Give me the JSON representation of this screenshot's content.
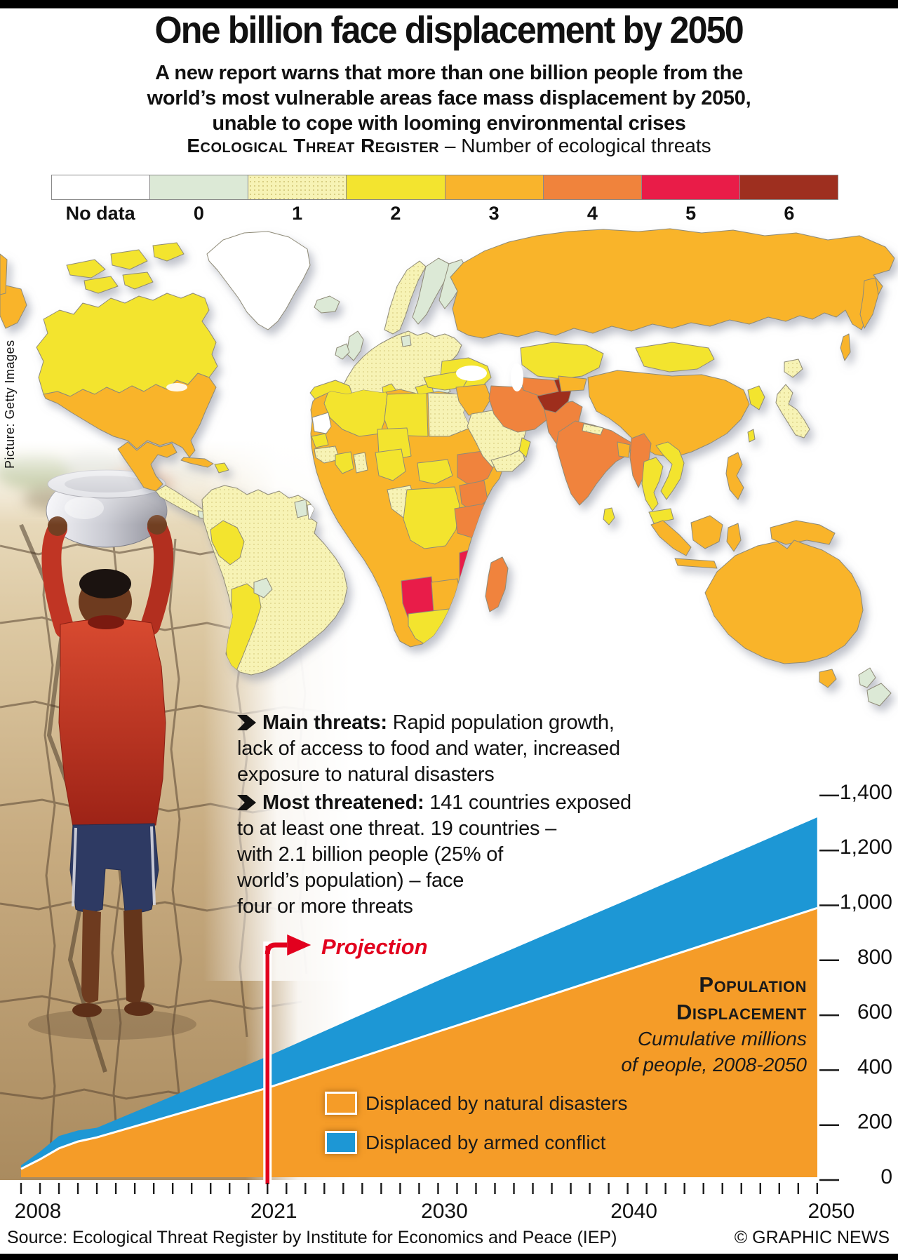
{
  "header": {
    "title": "One billion face displacement by 2050",
    "subtitle_lines": [
      "A new report warns that more than one billion people from the",
      "world’s most vulnerable areas face mass displacement by 2050,",
      "unable to cope with looming environmental crises"
    ],
    "register_label": "Ecological Threat Register",
    "register_rest": " – Number of ecological threats"
  },
  "threat_legend": {
    "labels": [
      "No data",
      "0",
      "1",
      "2",
      "3",
      "4",
      "5",
      "6"
    ],
    "colors": {
      "no_data": "#FFFFFF",
      "t0": "#DCE9D6",
      "t1": "#F7F3B5",
      "t2": "#F3E42F",
      "t3": "#F9B42C",
      "t4": "#F0833C",
      "t5": "#E91C48",
      "t6": "#9E2F1F"
    }
  },
  "photo_credit": "Picture: Getty Images",
  "map": {
    "type": "choropleth",
    "legend_title": "Number of ecological threats",
    "examples": {
      "Greenland": "No data",
      "Canada": 2,
      "United States": 3,
      "Mexico": 3,
      "Brazil": 1,
      "Peru": 2,
      "Argentina": 2,
      "Iceland": 0,
      "United Kingdom": 0,
      "Scandinavia": 0,
      "Western Europe": 1,
      "Spain": 2,
      "Russia": 3,
      "Kazakhstan": 2,
      "Mongolia": 2,
      "China": 3,
      "India": 4,
      "Iran": 4,
      "Pakistan": 4,
      "Afghanistan": 6,
      "Saudi Arabia": 1,
      "Egypt": 1,
      "Chad": 3,
      "Ethiopia": 4,
      "Kenya": 4,
      "Namibia": 5,
      "Mozambique": 5,
      "Botswana": 3,
      "South Africa": 2,
      "Madagascar": 4,
      "Japan": 1,
      "Indonesia": 3,
      "Australia": 3,
      "New Zealand": 0
    }
  },
  "notes": [
    {
      "lead": "Main threats:",
      "body": " Rapid population growth,\nlack of access to food and water, increased\nexposure to natural disasters"
    },
    {
      "lead": "Most threatened:",
      "body": " 141 countries exposed\nto at least one threat. 19 countries –\nwith 2.1 billion people (25% of\nworld’s population) – face\nfour or more threats"
    }
  ],
  "chart_data": {
    "type": "area",
    "stacked": true,
    "title": "Population Displacement",
    "subtitle": "Cumulative millions of people, 2008-2050",
    "x": [
      2008,
      2009,
      2010,
      2011,
      2012,
      2021,
      2030,
      2040,
      2050
    ],
    "series": [
      {
        "name": "Displaced by natural disasters",
        "color": "#F59C28",
        "values": [
          25,
          60,
          100,
          125,
          140,
          320,
          525,
          750,
          975
        ]
      },
      {
        "name": "Displaced by armed conflict",
        "color": "#1D97D5",
        "values": [
          13,
          28,
          45,
          40,
          35,
          115,
          185,
          255,
          330
        ]
      }
    ],
    "ylim": [
      0,
      1400
    ],
    "yticks": [
      {
        "v": 0,
        "label": "0"
      },
      {
        "v": 200,
        "label": "200"
      },
      {
        "v": 400,
        "label": "400"
      },
      {
        "v": 600,
        "label": "600"
      },
      {
        "v": 800,
        "label": "800"
      },
      {
        "v": 1000,
        "label": "1,000"
      },
      {
        "v": 1200,
        "label": "1,200"
      },
      {
        "v": 1400,
        "label": "1,400"
      }
    ],
    "xticks": [
      {
        "year": 2008,
        "label": "2008"
      },
      {
        "year": 2021,
        "label": "2021"
      },
      {
        "year": 2030,
        "label": "2030"
      },
      {
        "year": 2040,
        "label": "2040"
      },
      {
        "year": 2050,
        "label": "2050"
      }
    ],
    "projection_start_year": 2021,
    "colors": {
      "projection_red": "#E2001E"
    }
  },
  "chart_text": {
    "projection": "Projection",
    "block_caps": [
      "Population",
      "Displacement"
    ],
    "block_italic": [
      "Cumulative millions",
      "of people, 2008-2050"
    ],
    "legend": [
      {
        "label": "Displaced by natural disasters"
      },
      {
        "label": "Displaced by armed conflict"
      }
    ]
  },
  "footer": {
    "source": "Source: Ecological Threat Register by Institute for Economics and Peace (IEP)",
    "credit": "© GRAPHIC NEWS"
  }
}
